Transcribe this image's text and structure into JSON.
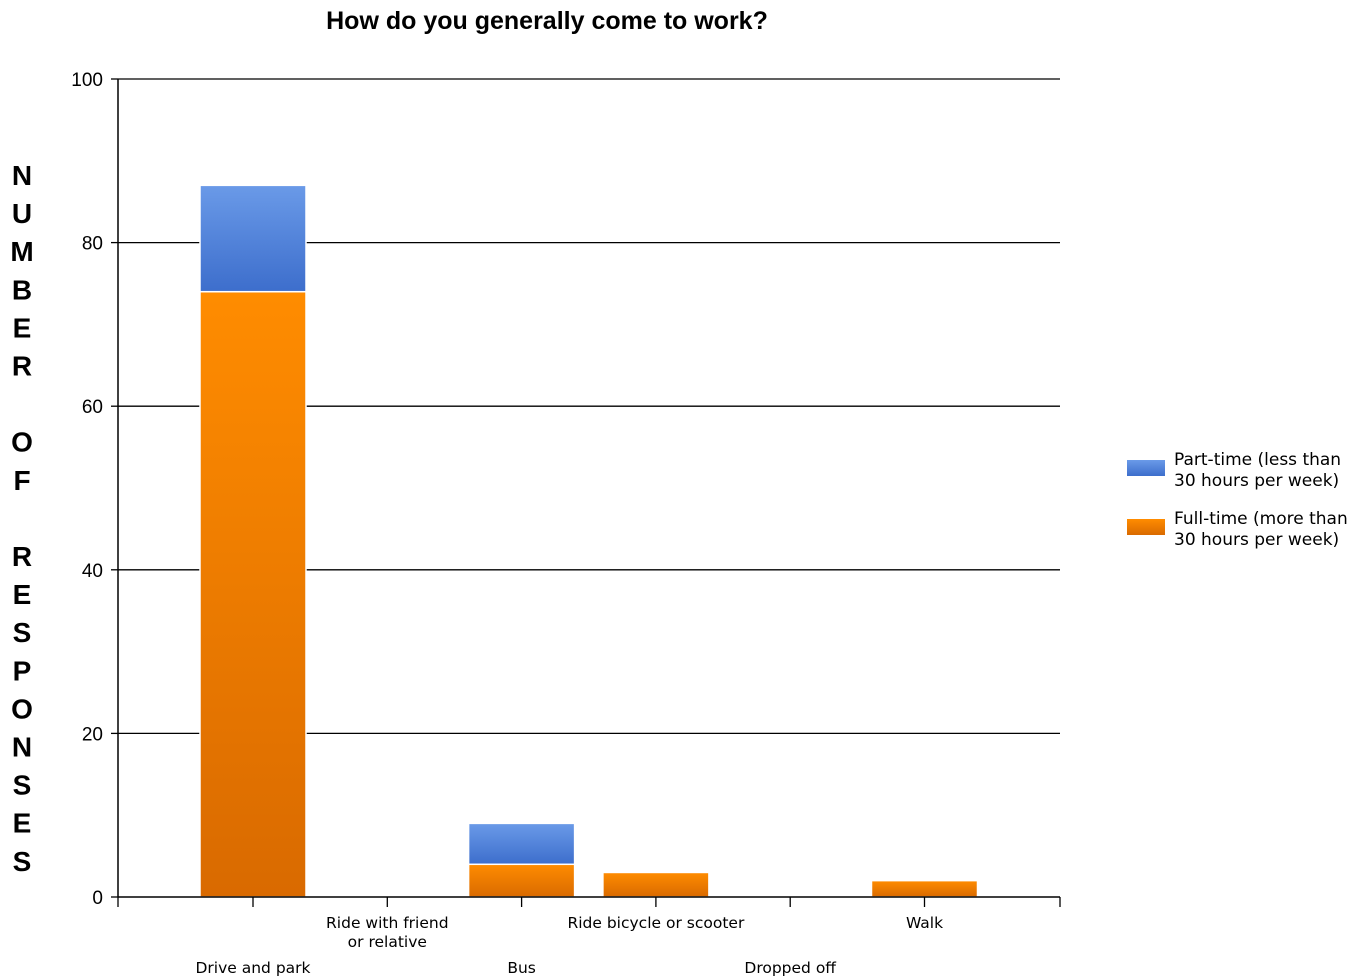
{
  "chart_data": {
    "type": "bar",
    "stacked": true,
    "title": "How do you generally come to work?",
    "xlabel": "",
    "ylabel": "NUMBER OF RESPONSES",
    "ylim": [
      0,
      100
    ],
    "yticks": [
      0,
      20,
      40,
      60,
      80,
      100
    ],
    "grid": true,
    "legend_position": "right",
    "categories": [
      "Drive and park",
      "Ride with friend or relative",
      "Bus",
      "Ride bicycle or scooter",
      "Dropped off",
      "Walk"
    ],
    "category_label_lines": [
      [
        "Drive and park"
      ],
      [
        "Ride with friend",
        "or relative"
      ],
      [
        "Bus"
      ],
      [
        "Ride bicycle or scooter"
      ],
      [
        "Dropped off"
      ],
      [
        "Walk"
      ]
    ],
    "series": [
      {
        "name": "Full-time (more than 30 hours per week)",
        "legend_lines": [
          "Full-time (more than",
          "30 hours per week)"
        ],
        "color_top": "#ff8c00",
        "color_bottom": "#d96a00",
        "values": [
          74,
          0,
          4,
          3,
          0,
          2
        ]
      },
      {
        "name": "Part-time (less than 30 hours per week)",
        "legend_lines": [
          "Part-time (less than",
          "30 hours per week)"
        ],
        "color_top": "#6a9ae8",
        "color_bottom": "#3d6ecc",
        "values": [
          13,
          0,
          5,
          0,
          0,
          0
        ]
      }
    ]
  }
}
